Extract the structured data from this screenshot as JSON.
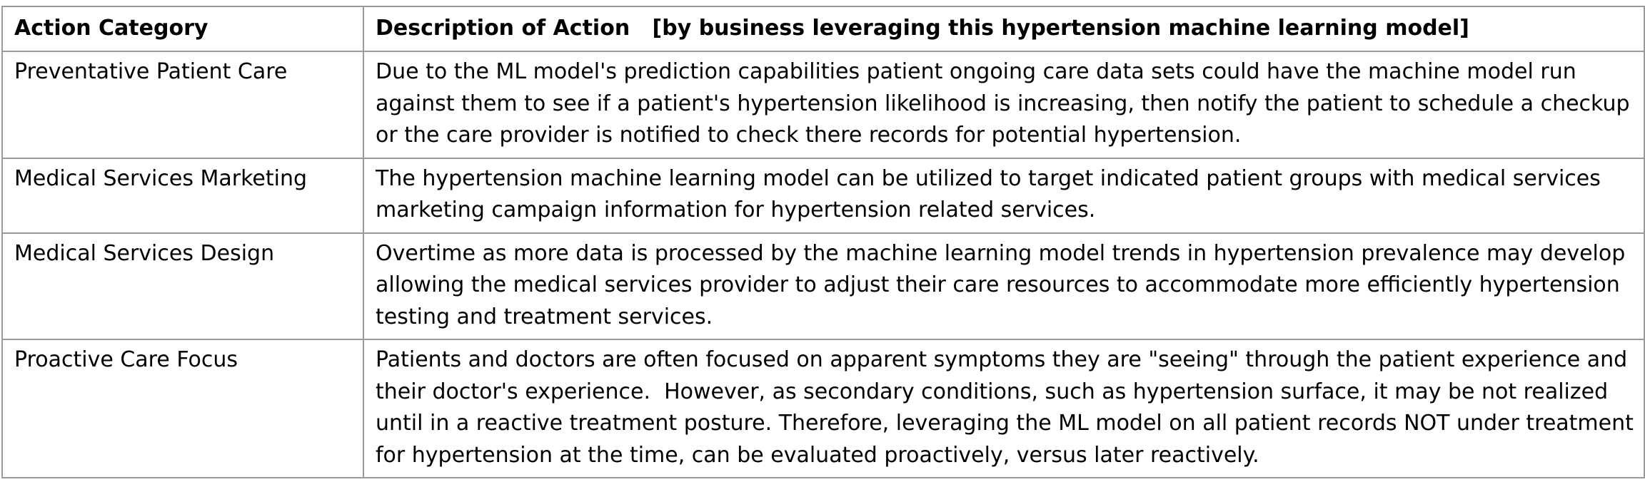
{
  "table": {
    "headers": {
      "category": "Action Category",
      "description": "Description of Action   [by business leveraging this hypertension machine learning model]"
    },
    "rows": [
      {
        "category": "Preventative Patient Care",
        "description": "Due to the ML model's prediction capabilities patient ongoing care data sets could have the machine model run against them to see if a patient's hypertension likelihood is increasing, then notify the patient to schedule a checkup or the care provider is notified to check there records for potential hypertension."
      },
      {
        "category": "Medical Services Marketing",
        "description": "The hypertension machine learning model can be utilized to target indicated patient groups with medical services marketing campaign information for hypertension related services."
      },
      {
        "category": "Medical Services Design",
        "description": "Overtime as more data is processed by the machine learning model trends in hypertension prevalence may develop allowing the medical services provider to adjust their care resources to accommodate more efficiently hypertension testing and treatment services."
      },
      {
        "category": "Proactive Care Focus",
        "description": "Patients and doctors are often focused on apparent symptoms they are \"seeing\" through the patient experience and their doctor's experience.  However, as secondary conditions, such as hypertension surface, it may be not realized until in a reactive treatment posture. Therefore, leveraging the ML model on all patient records NOT under treatment for hypertension at the time, can be evaluated proactively, versus later reactively."
      }
    ]
  }
}
